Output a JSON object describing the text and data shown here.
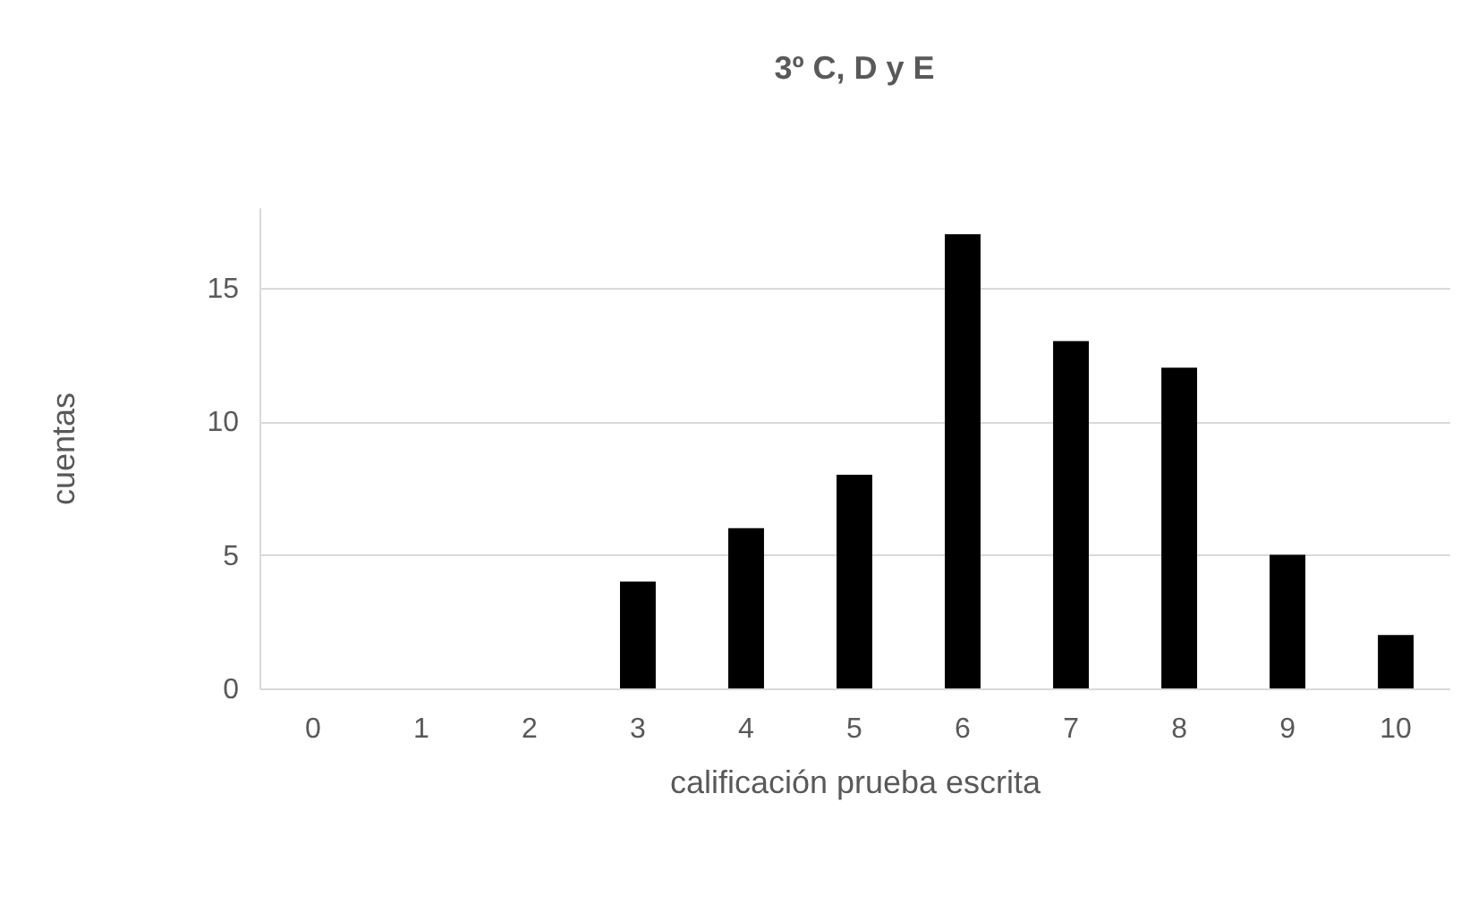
{
  "chart_data": {
    "type": "bar",
    "title": "3º C, D y E",
    "xlabel": "calificación prueba escrita",
    "ylabel": "cuentas",
    "categories": [
      "0",
      "1",
      "2",
      "3",
      "4",
      "5",
      "6",
      "7",
      "8",
      "9",
      "10"
    ],
    "values": [
      0,
      0,
      0,
      4,
      6,
      8,
      17,
      13,
      12,
      5,
      2
    ],
    "color": "#000000",
    "ylim": [
      0,
      18
    ],
    "yticks": [
      0,
      5,
      10,
      15
    ],
    "grid": "y"
  }
}
